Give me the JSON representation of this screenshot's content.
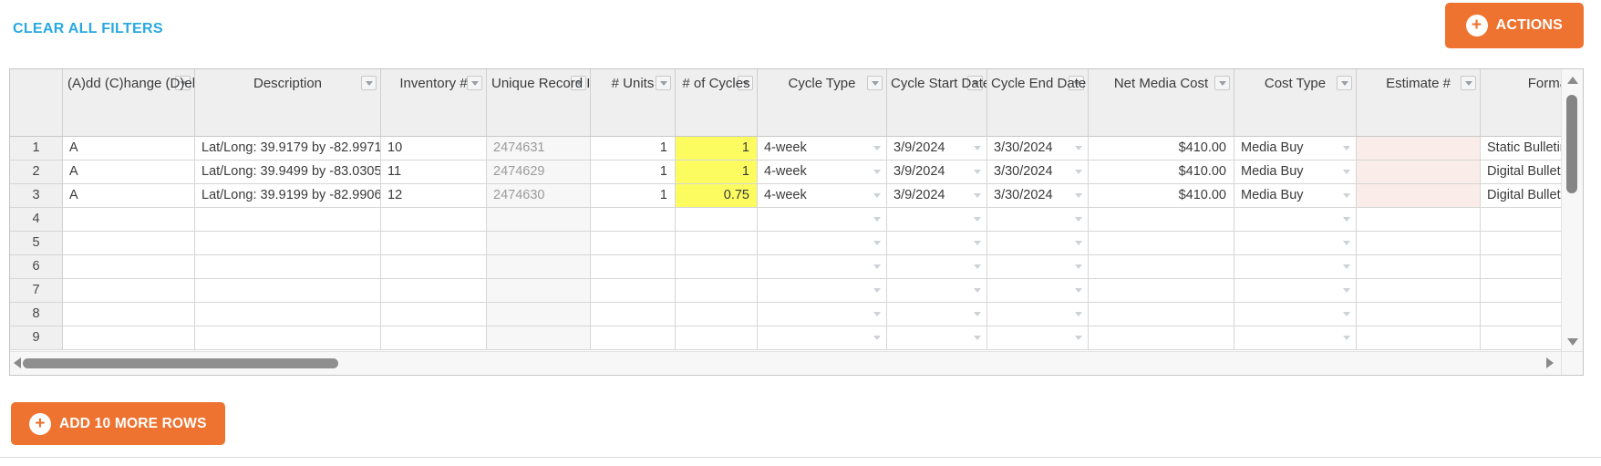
{
  "toolbar": {
    "clear_filters_label": "CLEAR ALL FILTERS",
    "actions_label": "ACTIONS"
  },
  "footer": {
    "add_rows_label": "ADD 10 MORE ROWS"
  },
  "icons": {
    "plus": "+"
  },
  "colors": {
    "accent_orange": "#EE7230",
    "link_blue": "#29A9DF",
    "highlight_yellow": "#FCFC60",
    "highlight_pink": "#F9ECE9",
    "header_gray": "#EFEFEF"
  },
  "grid": {
    "columns": [
      {
        "key": "num",
        "label": "",
        "filter": false
      },
      {
        "key": "add_change",
        "label": "(A)dd (C)hange (D)elete",
        "filter": true
      },
      {
        "key": "description",
        "label": "Description",
        "filter": true
      },
      {
        "key": "inventory",
        "label": "Inventory #",
        "filter": true
      },
      {
        "key": "unique_record",
        "label": "Unique Record ID",
        "filter": true
      },
      {
        "key": "units",
        "label": "# Units",
        "filter": true
      },
      {
        "key": "cycles",
        "label": "# of Cycles",
        "filter": true
      },
      {
        "key": "cycle_type",
        "label": "Cycle Type",
        "filter": true
      },
      {
        "key": "cycle_start",
        "label": "Cycle Start Date",
        "filter": true
      },
      {
        "key": "cycle_end",
        "label": "Cycle End Date",
        "filter": true
      },
      {
        "key": "net_cost",
        "label": "Net Media Cost",
        "filter": true
      },
      {
        "key": "cost_type",
        "label": "Cost Type",
        "filter": true
      },
      {
        "key": "estimate",
        "label": "Estimate #",
        "filter": true
      },
      {
        "key": "format",
        "label": "Format",
        "filter": false
      }
    ],
    "rows": [
      {
        "num": "1",
        "populated": true,
        "add_change": "A",
        "description": "Lat/Long: 39.9179 by -82.9971",
        "inventory": "10",
        "unique_record": "2474631",
        "units": "1",
        "cycles": "1",
        "cycle_type": "4-week",
        "cycle_start": "3/9/2024",
        "cycle_end": "3/30/2024",
        "net_cost": "$410.00",
        "cost_type": "Media Buy",
        "estimate": "",
        "format": "Static Bulletin"
      },
      {
        "num": "2",
        "populated": true,
        "add_change": "A",
        "description": "Lat/Long: 39.9499 by -83.0305",
        "inventory": "11",
        "unique_record": "2474629",
        "units": "1",
        "cycles": "1",
        "cycle_type": "4-week",
        "cycle_start": "3/9/2024",
        "cycle_end": "3/30/2024",
        "net_cost": "$410.00",
        "cost_type": "Media Buy",
        "estimate": "",
        "format": "Digital Bulletin"
      },
      {
        "num": "3",
        "populated": true,
        "add_change": "A",
        "description": "Lat/Long: 39.9199 by -82.9906",
        "inventory": "12",
        "unique_record": "2474630",
        "units": "1",
        "cycles": "0.75",
        "cycle_type": "4-week",
        "cycle_start": "3/9/2024",
        "cycle_end": "3/30/2024",
        "net_cost": "$410.00",
        "cost_type": "Media Buy",
        "estimate": "",
        "format": "Digital Bulletin"
      },
      {
        "num": "4",
        "populated": false,
        "add_change": "",
        "description": "",
        "inventory": "",
        "unique_record": "",
        "units": "",
        "cycles": "",
        "cycle_type": "",
        "cycle_start": "",
        "cycle_end": "",
        "net_cost": "",
        "cost_type": "",
        "estimate": "",
        "format": ""
      },
      {
        "num": "5",
        "populated": false,
        "add_change": "",
        "description": "",
        "inventory": "",
        "unique_record": "",
        "units": "",
        "cycles": "",
        "cycle_type": "",
        "cycle_start": "",
        "cycle_end": "",
        "net_cost": "",
        "cost_type": "",
        "estimate": "",
        "format": ""
      },
      {
        "num": "6",
        "populated": false,
        "add_change": "",
        "description": "",
        "inventory": "",
        "unique_record": "",
        "units": "",
        "cycles": "",
        "cycle_type": "",
        "cycle_start": "",
        "cycle_end": "",
        "net_cost": "",
        "cost_type": "",
        "estimate": "",
        "format": ""
      },
      {
        "num": "7",
        "populated": false,
        "add_change": "",
        "description": "",
        "inventory": "",
        "unique_record": "",
        "units": "",
        "cycles": "",
        "cycle_type": "",
        "cycle_start": "",
        "cycle_end": "",
        "net_cost": "",
        "cost_type": "",
        "estimate": "",
        "format": ""
      },
      {
        "num": "8",
        "populated": false,
        "add_change": "",
        "description": "",
        "inventory": "",
        "unique_record": "",
        "units": "",
        "cycles": "",
        "cycle_type": "",
        "cycle_start": "",
        "cycle_end": "",
        "net_cost": "",
        "cost_type": "",
        "estimate": "",
        "format": ""
      },
      {
        "num": "9",
        "populated": false,
        "add_change": "",
        "description": "",
        "inventory": "",
        "unique_record": "",
        "units": "",
        "cycles": "",
        "cycle_type": "",
        "cycle_start": "",
        "cycle_end": "",
        "net_cost": "",
        "cost_type": "",
        "estimate": "",
        "format": ""
      }
    ]
  }
}
